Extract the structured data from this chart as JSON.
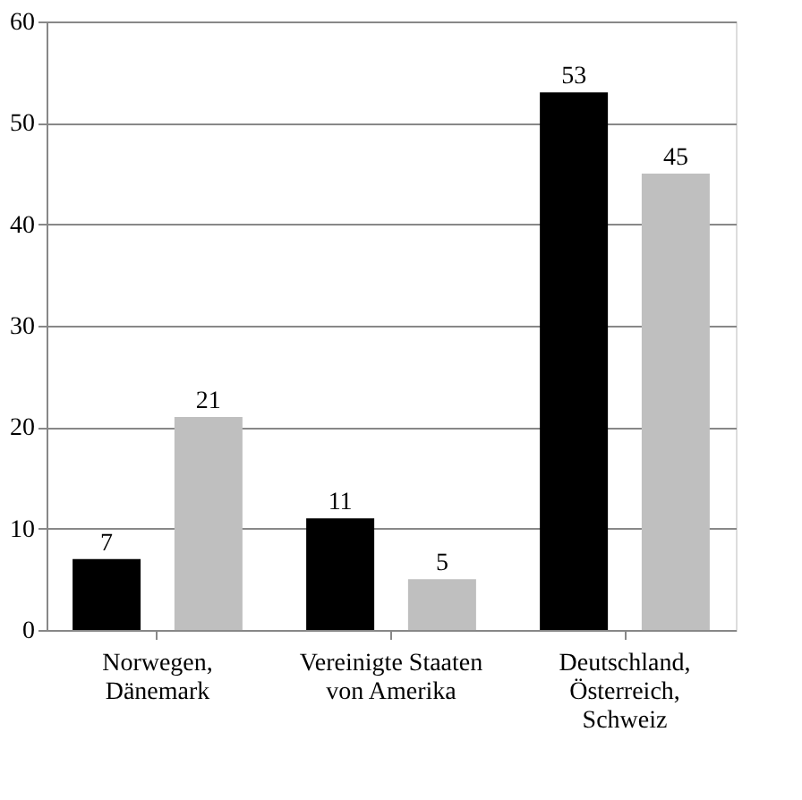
{
  "chart_data": {
    "type": "bar",
    "categories": [
      "Norwegen,\nDänemark",
      "Vereinigte Staaten\nvon Amerika",
      "Deutschland,\nÖsterreich,\nSchweiz"
    ],
    "series": [
      {
        "color": "#000000",
        "values": [
          7,
          11,
          53
        ]
      },
      {
        "color": "#bfbfbf",
        "values": [
          21,
          5,
          45
        ]
      }
    ],
    "ylim": [
      0,
      60
    ],
    "yticks": [
      0,
      10,
      20,
      30,
      40,
      50,
      60
    ],
    "grid": "y",
    "data_labels": true
  }
}
